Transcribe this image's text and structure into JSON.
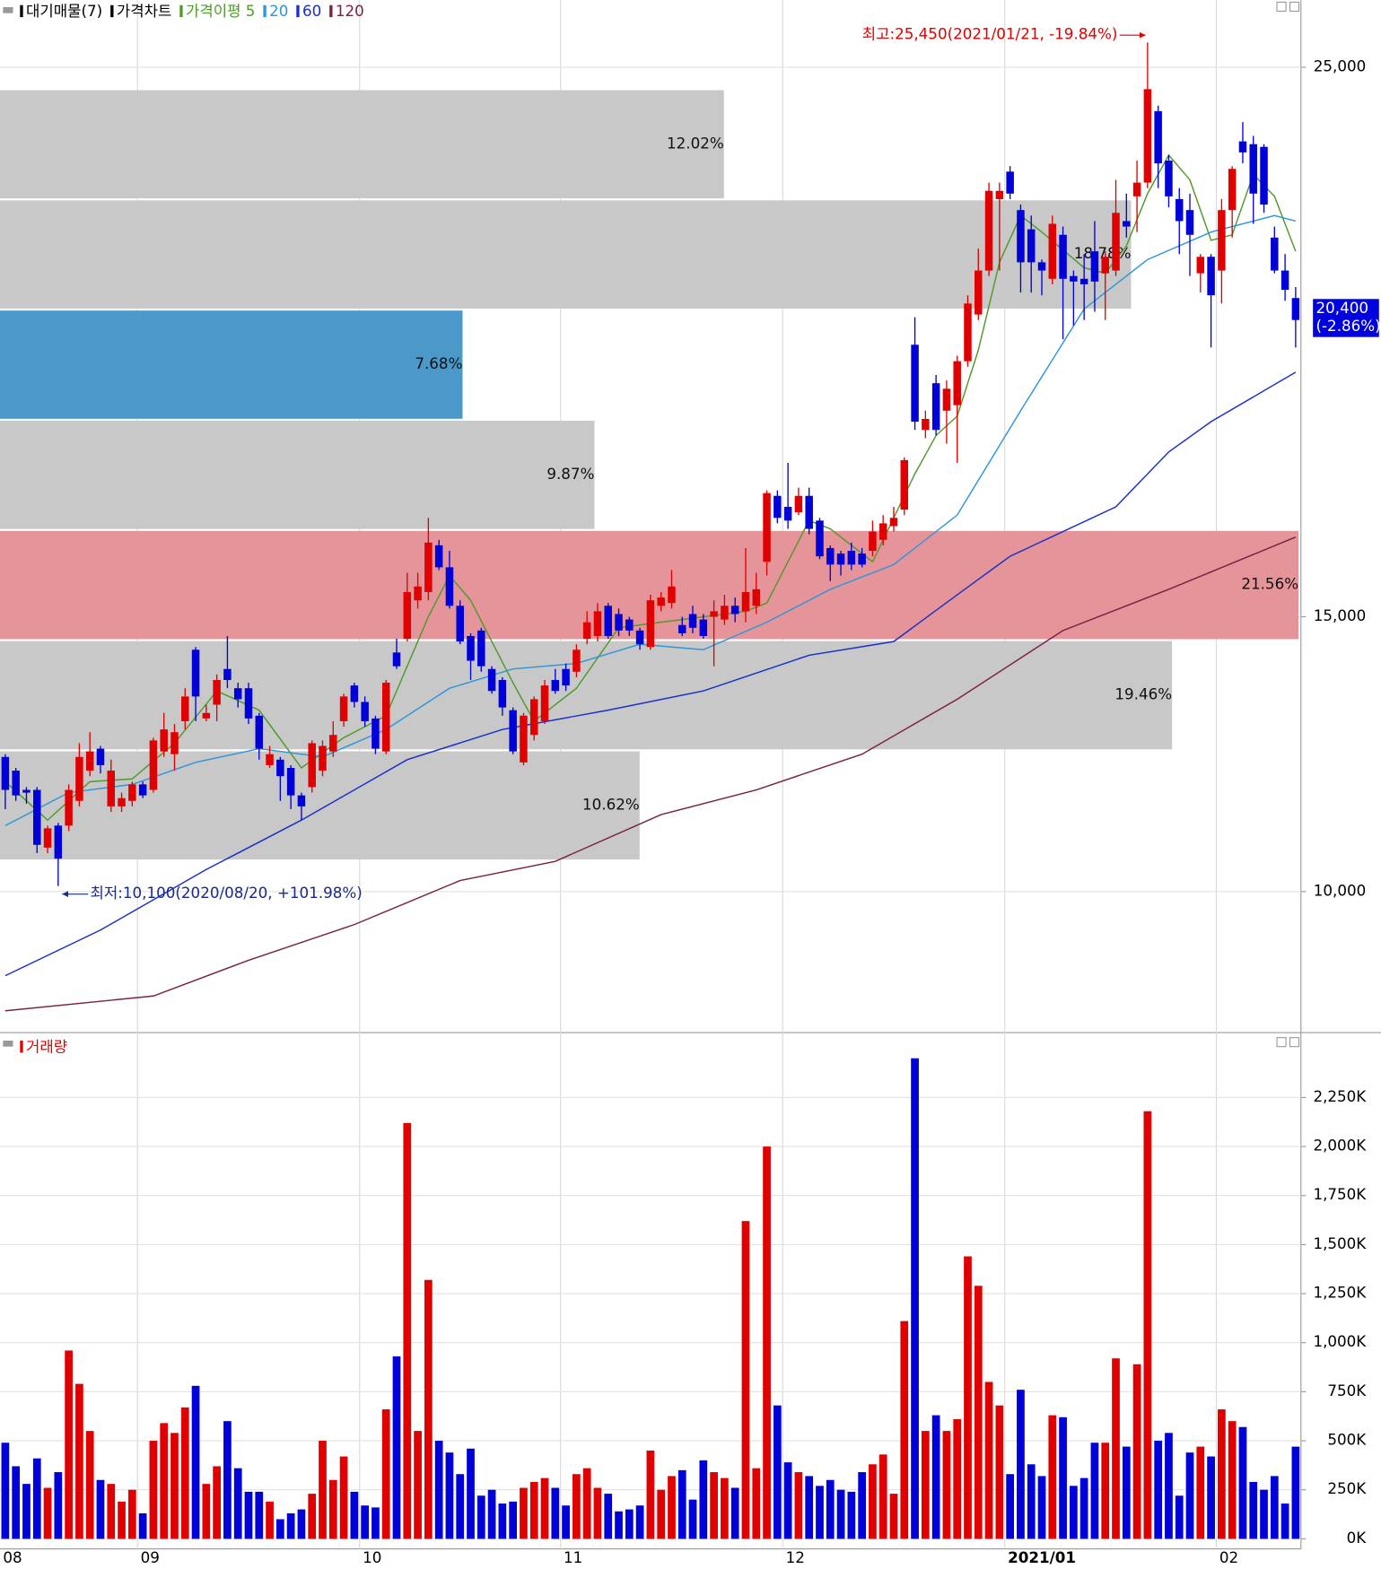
{
  "chart_data": {
    "type": "candlestick",
    "name": "가격차트",
    "up_color": "#e00000",
    "down_color": "#0000d8",
    "categories": [
      "08",
      null,
      null,
      null,
      null,
      null,
      null,
      null,
      null,
      null,
      null,
      null,
      null,
      "09",
      null,
      null,
      null,
      null,
      null,
      null,
      null,
      null,
      null,
      null,
      null,
      null,
      null,
      null,
      null,
      null,
      null,
      null,
      null,
      null,
      "10",
      null,
      null,
      null,
      null,
      null,
      null,
      null,
      null,
      null,
      null,
      null,
      null,
      null,
      null,
      null,
      null,
      null,
      null,
      "11",
      null,
      null,
      null,
      null,
      null,
      null,
      null,
      null,
      null,
      null,
      null,
      null,
      null,
      null,
      null,
      null,
      null,
      null,
      null,
      null,
      "12",
      null,
      null,
      null,
      null,
      null,
      null,
      null,
      null,
      null,
      null,
      null,
      null,
      null,
      null,
      null,
      null,
      null,
      null,
      null,
      null,
      "2021/01",
      null,
      null,
      null,
      null,
      null,
      null,
      null,
      null,
      null,
      null,
      null,
      null,
      null,
      null,
      null,
      null,
      null,
      null,
      null,
      "02",
      null,
      null,
      null,
      null,
      null,
      null,
      null
    ],
    "open": [
      12450,
      12200,
      11850,
      11850,
      10800,
      11200,
      11200,
      11650,
      12200,
      12600,
      11550,
      11550,
      11650,
      11950,
      11850,
      12550,
      12500,
      13100,
      14400,
      13150,
      13400,
      14050,
      13700,
      13700,
      13200,
      12300,
      12400,
      12250,
      11750,
      11900,
      12200,
      12550,
      13100,
      13750,
      13450,
      13150,
      12550,
      14350,
      14600,
      15300,
      15450,
      16300,
      15900,
      15200,
      14650,
      14750,
      14050,
      13850,
      13300,
      12350,
      12850,
      13100,
      13850,
      14050,
      14000,
      14600,
      14650,
      15200,
      15050,
      14950,
      14750,
      14450,
      15200,
      15250,
      14850,
      15050,
      14950,
      15000,
      14950,
      15200,
      15100,
      15200,
      16000,
      17200,
      17000,
      16900,
      17200,
      16750,
      16250,
      16150,
      16200,
      16150,
      16200,
      16400,
      16650,
      16950,
      19950,
      18400,
      19250,
      18750,
      18850,
      19650,
      20500,
      21300,
      22600,
      23100,
      22400,
      22050,
      21450,
      21150,
      21950,
      21200,
      21150,
      21650,
      21250,
      21300,
      22200,
      22650,
      22900,
      24200,
      23300,
      22600,
      22400,
      21250,
      21550,
      21300,
      22400,
      23650,
      23600,
      23550,
      21900,
      21300,
      20800
    ],
    "high": [
      12500,
      12250,
      11900,
      11900,
      11200,
      11250,
      11950,
      12700,
      12900,
      12650,
      12400,
      11800,
      12000,
      12000,
      12800,
      13250,
      13050,
      13700,
      14450,
      13400,
      13950,
      14650,
      13800,
      13800,
      13250,
      12650,
      12450,
      12300,
      11800,
      12750,
      12750,
      13100,
      13600,
      13800,
      13550,
      13200,
      13850,
      14600,
      15800,
      15800,
      16800,
      16400,
      16200,
      15300,
      14700,
      14800,
      14100,
      13900,
      13350,
      13250,
      13550,
      13850,
      14050,
      14150,
      14500,
      15100,
      15250,
      15250,
      15150,
      15000,
      14800,
      15400,
      15450,
      15850,
      15000,
      15200,
      15050,
      15300,
      15400,
      15350,
      16250,
      15800,
      17300,
      17300,
      17800,
      17350,
      17350,
      16800,
      16300,
      16200,
      16350,
      16250,
      16750,
      16850,
      17000,
      17900,
      20450,
      18750,
      19400,
      19300,
      19750,
      20850,
      21700,
      22900,
      22900,
      23200,
      22500,
      22300,
      21500,
      22300,
      22100,
      21300,
      21600,
      22200,
      21650,
      22950,
      22700,
      23300,
      25450,
      24300,
      23400,
      22800,
      22700,
      21600,
      21600,
      22600,
      23200,
      24000,
      23750,
      23600,
      22100,
      21600,
      21000
    ],
    "low": [
      11500,
      11650,
      11600,
      10700,
      10700,
      10100,
      11100,
      11550,
      12100,
      12150,
      11450,
      11450,
      11550,
      11700,
      11800,
      12450,
      12200,
      12950,
      13100,
      13100,
      13100,
      13700,
      13350,
      13050,
      12400,
      12250,
      11650,
      11500,
      11300,
      11800,
      12100,
      12450,
      13000,
      13350,
      13000,
      12500,
      12500,
      14050,
      14550,
      15150,
      15300,
      15850,
      15150,
      14500,
      13850,
      14000,
      13600,
      13200,
      12500,
      12300,
      12750,
      13050,
      13600,
      13650,
      13900,
      14500,
      14550,
      14600,
      14650,
      14650,
      14400,
      14400,
      15100,
      15150,
      14650,
      14700,
      14600,
      14100,
      14850,
      14900,
      14900,
      15050,
      15750,
      16700,
      16600,
      16850,
      16500,
      16050,
      15650,
      15750,
      15850,
      15900,
      16100,
      16300,
      16550,
      16850,
      18400,
      18250,
      18300,
      18150,
      17800,
      19550,
      20400,
      21200,
      21300,
      22600,
      20900,
      20900,
      20850,
      21050,
      20050,
      20300,
      20400,
      20550,
      20400,
      21200,
      21900,
      22000,
      22800,
      22800,
      22450,
      21600,
      21200,
      20900,
      19900,
      20700,
      21900,
      23250,
      22150,
      22350,
      21250,
      20750,
      19900
    ],
    "close": [
      11850,
      11750,
      11800,
      10850,
      11150,
      10600,
      11850,
      12450,
      12550,
      12300,
      12200,
      11700,
      11950,
      11750,
      12750,
      12950,
      12900,
      13550,
      13550,
      13250,
      13850,
      13850,
      13500,
      13150,
      12600,
      12500,
      12100,
      11750,
      11550,
      12700,
      12650,
      12850,
      13550,
      13450,
      13100,
      12600,
      13800,
      14100,
      15450,
      15550,
      16350,
      15900,
      15200,
      14550,
      14200,
      14100,
      13650,
      13350,
      12550,
      13200,
      13500,
      13750,
      13650,
      13750,
      14400,
      14900,
      15100,
      14650,
      14750,
      14750,
      14500,
      15300,
      15350,
      15550,
      14700,
      14800,
      14650,
      15100,
      15200,
      15050,
      15450,
      15500,
      17250,
      16800,
      16750,
      17200,
      16600,
      16100,
      15950,
      15950,
      15950,
      15950,
      16550,
      16700,
      16800,
      17850,
      18550,
      18600,
      18400,
      19150,
      19650,
      20700,
      21300,
      22750,
      22750,
      22700,
      21450,
      21450,
      21300,
      22150,
      21150,
      21100,
      21050,
      21100,
      21550,
      22350,
      22100,
      22900,
      24600,
      23250,
      22650,
      22200,
      21950,
      21550,
      20850,
      22400,
      23150,
      23450,
      22700,
      22500,
      21300,
      20950,
      20400
    ],
    "ylim": [
      7470,
      26220
    ],
    "yticks": [
      {
        "value": 10000,
        "label": "10,000"
      },
      {
        "value": 15000,
        "label": "15,000"
      },
      {
        "value": 25000,
        "label": "25,000"
      }
    ],
    "grid": true,
    "moving_averages": [
      {
        "name": "가격이평 5",
        "color": "#4f9a2a",
        "x": [
          0,
          4,
          8,
          12,
          16,
          20,
          24,
          28,
          32,
          36,
          40,
          42,
          44,
          48,
          50,
          54,
          58,
          62,
          66,
          70,
          72,
          76,
          78,
          82,
          86,
          88,
          90,
          92,
          94,
          96,
          98,
          102,
          104,
          106,
          108,
          110,
          112,
          114,
          116,
          118,
          120,
          122
        ],
        "values": [
          12000,
          11300,
          12000,
          12050,
          12700,
          13650,
          13300,
          12250,
          12800,
          13200,
          15000,
          15750,
          15300,
          13800,
          13100,
          13700,
          14800,
          14900,
          15000,
          15100,
          15250,
          16750,
          16600,
          16000,
          17600,
          18300,
          18650,
          19850,
          21450,
          22300,
          22000,
          21350,
          21250,
          21750,
          22700,
          23400,
          22950,
          21850,
          21950,
          23050,
          22650,
          21650
        ]
      },
      {
        "name": "20",
        "color": "#2f96d8",
        "x": [
          0,
          6,
          12,
          18,
          24,
          30,
          36,
          42,
          48,
          54,
          60,
          66,
          72,
          78,
          84,
          90,
          96,
          102,
          108,
          114,
          120,
          122
        ],
        "values": [
          11200,
          11800,
          11950,
          12350,
          12600,
          12450,
          12950,
          13700,
          14050,
          14150,
          14500,
          14400,
          14900,
          15500,
          15950,
          16850,
          18750,
          20600,
          21500,
          22000,
          22300,
          22200
        ]
      },
      {
        "name": "60",
        "color": "#1a2fc8",
        "x": [
          0,
          9,
          19,
          28,
          38,
          47,
          57,
          66,
          76,
          84,
          90,
          95,
          100,
          105,
          110,
          114,
          122
        ],
        "values": [
          8470,
          9300,
          10400,
          11300,
          12400,
          12950,
          13300,
          13650,
          14300,
          14550,
          15400,
          16100,
          16550,
          17000,
          18000,
          18550,
          19450
        ]
      },
      {
        "name": "120",
        "color": "#7a2046",
        "x": [
          0,
          14,
          23,
          33,
          43,
          52,
          62,
          71,
          81,
          90,
          100,
          110,
          122
        ],
        "values": [
          7830,
          8100,
          8750,
          9400,
          10200,
          10550,
          11400,
          11850,
          12500,
          13500,
          14750,
          15500,
          16450
        ]
      }
    ],
    "volume_profile": {
      "name": "대기매물(7)",
      "bins": [
        10565,
        12570,
        14575,
        16580,
        18585,
        20590,
        22595,
        24600
      ],
      "values": [
        10.62,
        19.46,
        21.56,
        9.87,
        7.68,
        18.78,
        12.02
      ],
      "value_labels": [
        "10.62%",
        "19.46%",
        "21.56%",
        "9.87%",
        "7.68%",
        "18.78%",
        "12.02%"
      ],
      "colors": [
        "#c8c8c8",
        "#c8c8c8",
        "#e5949a",
        "#c8c8c8",
        "#4a99c9",
        "#c8c8c8",
        "#c8c8c8"
      ],
      "xlim": [
        0,
        21.6
      ]
    },
    "annotations": {
      "high": "최고:25,450(2021/01/21, -19.84%)",
      "low": "최저:10,100(2020/08/20, +101.98%)"
    },
    "last_price": {
      "value": 20400,
      "label": "20,400",
      "change": "(-2.86%)"
    },
    "volume": {
      "name": "거래량",
      "values": [
        490000,
        370000,
        280000,
        410000,
        260000,
        340000,
        960000,
        790000,
        550000,
        300000,
        280000,
        190000,
        250000,
        130000,
        500000,
        590000,
        540000,
        670000,
        780000,
        280000,
        370000,
        600000,
        360000,
        240000,
        240000,
        190000,
        100000,
        130000,
        150000,
        230000,
        500000,
        300000,
        420000,
        240000,
        170000,
        160000,
        660000,
        930000,
        2120000,
        550000,
        1320000,
        500000,
        440000,
        330000,
        460000,
        220000,
        250000,
        180000,
        190000,
        260000,
        290000,
        310000,
        260000,
        170000,
        330000,
        360000,
        260000,
        230000,
        140000,
        150000,
        170000,
        450000,
        250000,
        320000,
        350000,
        200000,
        400000,
        340000,
        310000,
        260000,
        1620000,
        360000,
        2000000,
        680000,
        390000,
        340000,
        320000,
        270000,
        300000,
        250000,
        240000,
        340000,
        380000,
        430000,
        230000,
        1110000,
        2450000,
        550000,
        630000,
        550000,
        610000,
        1440000,
        1290000,
        800000,
        680000,
        330000,
        760000,
        380000,
        320000,
        630000,
        620000,
        270000,
        310000,
        490000,
        490000,
        920000,
        470000,
        890000,
        2180000,
        500000,
        540000,
        220000,
        440000,
        470000,
        420000,
        660000,
        600000,
        570000,
        290000,
        250000,
        320000,
        180000,
        470000
      ],
      "ylim": [
        0,
        2540000
      ],
      "yticks": [
        {
          "value": 0,
          "label": "0K"
        },
        {
          "value": 250000,
          "label": "250K"
        },
        {
          "value": 500000,
          "label": "500K"
        },
        {
          "value": 750000,
          "label": "750K"
        },
        {
          "value": 1000000,
          "label": "1,000K"
        },
        {
          "value": 1250000,
          "label": "1,250K"
        },
        {
          "value": 1500000,
          "label": "1,500K"
        },
        {
          "value": 1750000,
          "label": "1,750K"
        },
        {
          "value": 2000000,
          "label": "2,000K"
        },
        {
          "value": 2250000,
          "label": "2,250K"
        }
      ]
    }
  }
}
